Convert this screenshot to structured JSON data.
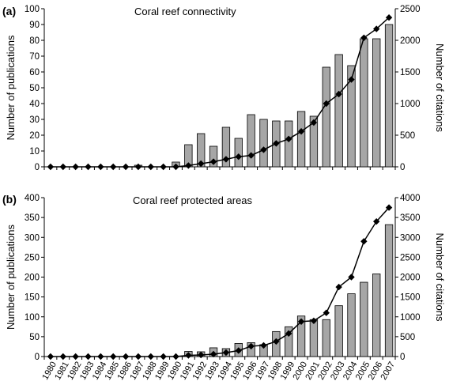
{
  "figure": {
    "panels": [
      {
        "letter": "(a)",
        "title": "Coral reef connectivity"
      },
      {
        "letter": "(b)",
        "title": "Coral reef protected areas"
      }
    ]
  },
  "chart_data": [
    {
      "type": "bar",
      "title": "Coral reef connectivity",
      "panel_label": "(a)",
      "categories": [
        "1980",
        "1981",
        "1982",
        "1983",
        "1984",
        "1985",
        "1986",
        "1987",
        "1988",
        "1989",
        "1990",
        "1991",
        "1992",
        "1993",
        "1994",
        "1995",
        "1996",
        "1997",
        "1998",
        "1999",
        "2000",
        "2001",
        "2002",
        "2003",
        "2004",
        "2005",
        "2006",
        "2007"
      ],
      "ylabel": "Number of publications",
      "y2label": "Number of citations",
      "ylim": [
        0,
        100
      ],
      "y2lim": [
        0,
        2500
      ],
      "yticks": [
        0,
        10,
        20,
        30,
        40,
        50,
        60,
        70,
        80,
        90,
        100
      ],
      "y2ticks": [
        0,
        500,
        1000,
        1500,
        2000,
        2500
      ],
      "series": [
        {
          "kind": "bar",
          "axis": "left",
          "color": "#a6a6a6",
          "values": [
            0,
            0,
            0,
            0,
            0,
            0,
            0,
            1,
            0,
            0,
            3,
            14,
            21,
            13,
            25,
            18,
            33,
            30,
            29,
            29,
            35,
            32,
            63,
            71,
            64,
            81,
            81,
            90
          ]
        },
        {
          "kind": "line",
          "axis": "right",
          "color": "#000000",
          "marker": "diamond",
          "values": [
            0,
            0,
            0,
            0,
            0,
            0,
            0,
            0,
            0,
            0,
            0,
            20,
            50,
            80,
            120,
            160,
            180,
            270,
            370,
            440,
            560,
            700,
            1000,
            1150,
            1380,
            2040,
            2180,
            2360
          ]
        }
      ],
      "grid": false,
      "legend": "none"
    },
    {
      "type": "bar",
      "title": "Coral reef protected areas",
      "panel_label": "(b)",
      "categories": [
        "1980",
        "1981",
        "1982",
        "1983",
        "1984",
        "1985",
        "1986",
        "1987",
        "1988",
        "1989",
        "1990",
        "1991",
        "1992",
        "1993",
        "1994",
        "1995",
        "1996",
        "1997",
        "1998",
        "1999",
        "2000",
        "2001",
        "2002",
        "2003",
        "2004",
        "2005",
        "2006",
        "2007"
      ],
      "ylabel": "Number of publications",
      "y2label": "Number of citations",
      "ylim": [
        0,
        400
      ],
      "y2lim": [
        0,
        4000
      ],
      "yticks": [
        0,
        50,
        100,
        150,
        200,
        250,
        300,
        350,
        400
      ],
      "y2ticks": [
        0,
        500,
        1000,
        1500,
        2000,
        2500,
        3000,
        3500,
        4000
      ],
      "series": [
        {
          "kind": "bar",
          "axis": "left",
          "color": "#a6a6a6",
          "values": [
            0,
            0,
            0,
            0,
            0,
            0,
            0,
            0,
            0,
            0,
            0,
            13,
            12,
            22,
            20,
            33,
            35,
            30,
            63,
            75,
            102,
            93,
            93,
            128,
            158,
            187,
            208,
            332
          ]
        },
        {
          "kind": "line",
          "axis": "right",
          "color": "#000000",
          "marker": "diamond",
          "values": [
            0,
            0,
            0,
            0,
            0,
            0,
            0,
            0,
            0,
            0,
            0,
            30,
            40,
            60,
            100,
            150,
            260,
            280,
            380,
            580,
            880,
            900,
            1100,
            1750,
            2000,
            2900,
            3400,
            3750
          ]
        }
      ],
      "grid": false,
      "legend": "none"
    }
  ]
}
